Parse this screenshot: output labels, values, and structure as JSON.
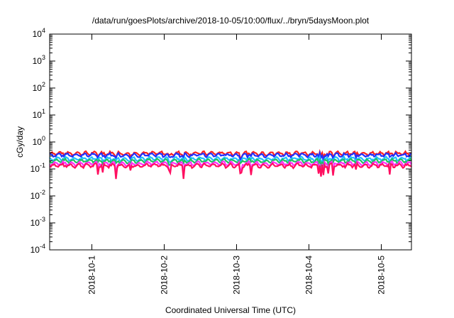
{
  "chart_data": {
    "type": "line",
    "title": "/data/run/goesPlots/archive/2018-10-05/10:00/flux/../bryn/5daysMoon.plot",
    "xlabel": "Coordinated Universal Time (UTC)",
    "ylabel": "cGy/day",
    "yscale": "log",
    "ylim": [
      0.0001,
      10000
    ],
    "xlim": [
      "2018-09-30T10:00",
      "2018-10-05T10:00"
    ],
    "y_ticks": [
      {
        "base": "10",
        "exp": "4"
      },
      {
        "base": "10",
        "exp": "3"
      },
      {
        "base": "10",
        "exp": "2"
      },
      {
        "base": "10",
        "exp": "1"
      },
      {
        "base": "10",
        "exp": "0"
      },
      {
        "base": "10",
        "exp": "-1"
      },
      {
        "base": "10",
        "exp": "-2"
      },
      {
        "base": "10",
        "exp": "-3"
      },
      {
        "base": "10",
        "exp": "-4"
      }
    ],
    "x_ticks": [
      "2018-10-1",
      "2018-10-2",
      "2018-10-3",
      "2018-10-4",
      "2018-10-5"
    ],
    "grid": false,
    "series": [
      {
        "color": "#ff2020",
        "level": 0.38
      },
      {
        "color": "#2030ff",
        "level": 0.33
      },
      {
        "color": "#20c0ff",
        "level": 0.24
      },
      {
        "color": "#20c060",
        "level": 0.2
      },
      {
        "color": "#ff30ff",
        "level": 0.16
      },
      {
        "color": "#ff1060",
        "level": 0.135
      }
    ]
  }
}
